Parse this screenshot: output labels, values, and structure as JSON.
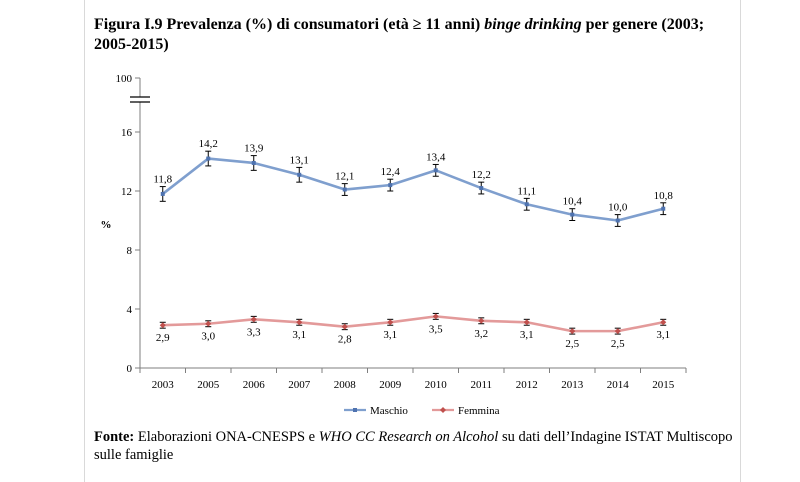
{
  "title": {
    "part1": "Figura I.9 Prevalenza (%) di consumatori (età ≥ 11 anni) ",
    "italic": "binge drinking",
    "part2": " per genere (2003; 2005-2015)"
  },
  "source": {
    "label": "Fonte:",
    "part1": " Elaborazioni ONA-CNESPS e ",
    "italic": "WHO CC Research on Alcohol",
    "part2": " su dati dell’Indagine ISTAT Multiscopo sulle famiglie"
  },
  "chart_data": {
    "type": "line",
    "title": "",
    "xlabel": "",
    "ylabel": "%",
    "categories": [
      "2003",
      "2005",
      "2006",
      "2007",
      "2008",
      "2009",
      "2010",
      "2011",
      "2012",
      "2013",
      "2014",
      "2015"
    ],
    "y_ticks": [
      "0",
      "4",
      "8",
      "12",
      "16",
      "100"
    ],
    "ylim": [
      0,
      18
    ],
    "y_axis_break": true,
    "grid": false,
    "legend_position": "bottom",
    "error_bars": true,
    "series": [
      {
        "name": "Maschio",
        "color": "#7f9fce",
        "marker_color": "#4f73b0",
        "values": [
          11.8,
          14.2,
          13.9,
          13.1,
          12.1,
          12.4,
          13.4,
          12.2,
          11.1,
          10.4,
          10.0,
          10.8
        ],
        "labels": [
          "11,8",
          "14,2",
          "13,9",
          "13,1",
          "12,1",
          "12,4",
          "13,4",
          "12,2",
          "11,1",
          "10,4",
          "10,0",
          "10,8"
        ],
        "error": [
          0.5,
          0.5,
          0.5,
          0.5,
          0.4,
          0.4,
          0.4,
          0.4,
          0.4,
          0.4,
          0.4,
          0.4
        ]
      },
      {
        "name": "Femmina",
        "color": "#e39a9a",
        "marker_color": "#c0504d",
        "values": [
          2.9,
          3.0,
          3.3,
          3.1,
          2.8,
          3.1,
          3.5,
          3.2,
          3.1,
          2.5,
          2.5,
          3.1
        ],
        "labels": [
          "2,9",
          "3,0",
          "3,3",
          "3,1",
          "2,8",
          "3,1",
          "3,5",
          "3,2",
          "3,1",
          "2,5",
          "2,5",
          "3,1"
        ],
        "error": [
          0.2,
          0.2,
          0.2,
          0.2,
          0.2,
          0.2,
          0.2,
          0.2,
          0.2,
          0.2,
          0.2,
          0.2
        ]
      }
    ]
  }
}
